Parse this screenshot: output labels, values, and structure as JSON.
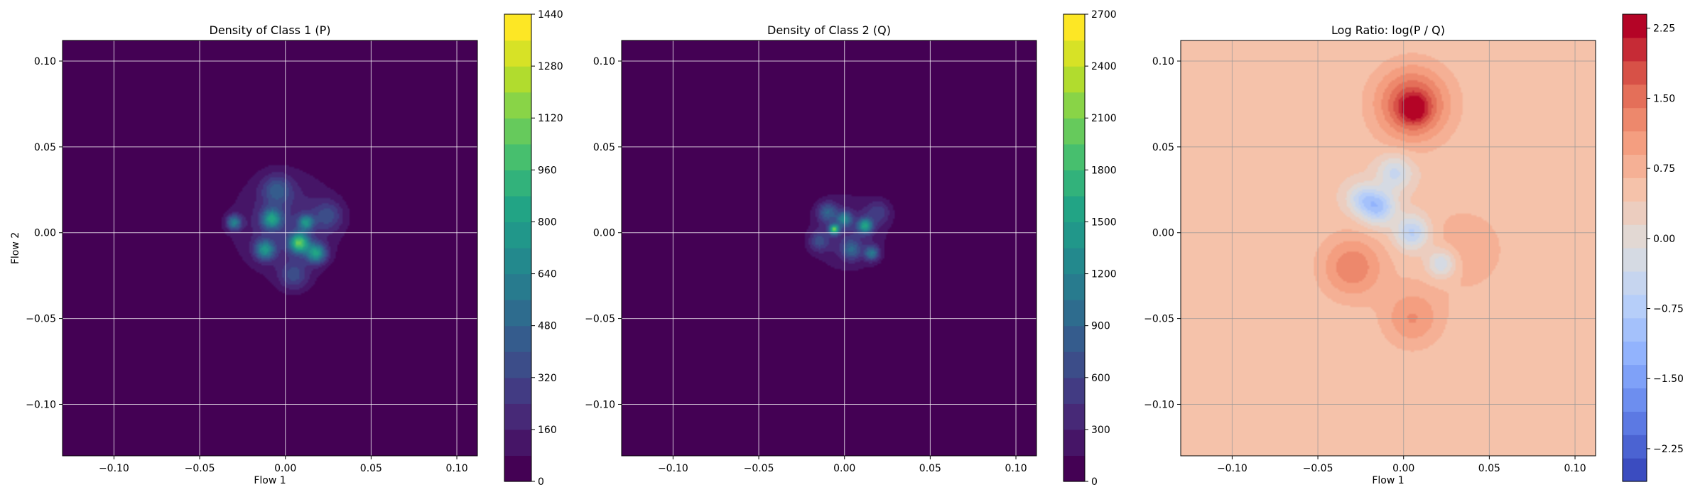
{
  "chart_data": [
    {
      "type": "heatmap",
      "title": "Density of Class 1 (P)",
      "xlabel": "Flow 1",
      "ylabel": "Flow 2",
      "xlim": [
        -0.13,
        0.112
      ],
      "ylim": [
        -0.13,
        0.112
      ],
      "xticks": [
        "−0.10",
        "−0.05",
        "0.00",
        "0.05",
        "0.10"
      ],
      "yticks": [
        "0.10",
        "0.05",
        "0.00",
        "−0.05",
        "−0.10"
      ],
      "grid": true,
      "colormap": "viridis",
      "colorbar": {
        "min": 0,
        "max": 1440,
        "ticks": [
          "0",
          "160",
          "320",
          "480",
          "640",
          "800",
          "960",
          "1120",
          "1280",
          "1440"
        ]
      },
      "blobs": [
        {
          "x": 0.0,
          "y": 0.005,
          "sigma": 0.022,
          "value": 230
        },
        {
          "x": -0.012,
          "y": -0.01,
          "sigma": 0.004,
          "value": 620
        },
        {
          "x": -0.03,
          "y": 0.006,
          "sigma": 0.003,
          "value": 560
        },
        {
          "x": 0.008,
          "y": -0.006,
          "sigma": 0.004,
          "value": 900
        },
        {
          "x": 0.018,
          "y": -0.012,
          "sigma": 0.004,
          "value": 700
        },
        {
          "x": -0.008,
          "y": 0.008,
          "sigma": 0.004,
          "value": 650
        },
        {
          "x": 0.012,
          "y": 0.006,
          "sigma": 0.003,
          "value": 580
        },
        {
          "x": -0.005,
          "y": 0.025,
          "sigma": 0.006,
          "value": 320
        },
        {
          "x": 0.005,
          "y": -0.025,
          "sigma": 0.006,
          "value": 280
        },
        {
          "x": 0.025,
          "y": 0.01,
          "sigma": 0.006,
          "value": 260
        }
      ]
    },
    {
      "type": "heatmap",
      "title": "Density of Class 2 (Q)",
      "xlabel": "",
      "ylabel": "",
      "xlim": [
        -0.13,
        0.112
      ],
      "ylim": [
        -0.13,
        0.112
      ],
      "xticks": [
        "−0.10",
        "−0.05",
        "0.00",
        "0.05",
        "0.10"
      ],
      "yticks": [
        "0.10",
        "0.05",
        "0.00",
        "−0.05",
        "−0.10"
      ],
      "grid": true,
      "colormap": "viridis",
      "colorbar": {
        "min": 0,
        "max": 2700,
        "ticks": [
          "0",
          "300",
          "600",
          "900",
          "1200",
          "1500",
          "1800",
          "2100",
          "2400",
          "2700"
        ]
      },
      "blobs": [
        {
          "x": 0.002,
          "y": 0.0,
          "sigma": 0.016,
          "value": 380
        },
        {
          "x": -0.006,
          "y": 0.002,
          "sigma": 0.002,
          "value": 1700
        },
        {
          "x": 0.012,
          "y": 0.004,
          "sigma": 0.003,
          "value": 1300
        },
        {
          "x": 0.0,
          "y": 0.008,
          "sigma": 0.003,
          "value": 950
        },
        {
          "x": 0.016,
          "y": -0.012,
          "sigma": 0.003,
          "value": 900
        },
        {
          "x": -0.01,
          "y": 0.012,
          "sigma": 0.004,
          "value": 700
        },
        {
          "x": 0.004,
          "y": -0.01,
          "sigma": 0.004,
          "value": 650
        },
        {
          "x": -0.015,
          "y": -0.005,
          "sigma": 0.004,
          "value": 500
        },
        {
          "x": 0.02,
          "y": 0.012,
          "sigma": 0.005,
          "value": 420
        }
      ]
    },
    {
      "type": "heatmap",
      "title": "Log Ratio: log(P / Q)",
      "xlabel": "Flow 1",
      "ylabel": "",
      "xlim": [
        -0.13,
        0.112
      ],
      "ylim": [
        -0.13,
        0.112
      ],
      "xticks": [
        "−0.10",
        "−0.05",
        "0.00",
        "0.05",
        "0.10"
      ],
      "yticks": [
        "0.10",
        "0.05",
        "0.00",
        "−0.05",
        "−0.10"
      ],
      "grid": true,
      "colormap": "coolwarm",
      "colorbar": {
        "min": -2.6,
        "max": 2.4,
        "ticks": [
          "−2.25",
          "−1.50",
          "−0.75",
          "0.00",
          "0.75",
          "1.50",
          "2.25"
        ],
        "tick_values": [
          -2.25,
          -1.5,
          -0.75,
          0,
          0.75,
          1.5,
          2.25
        ]
      },
      "background": 0.45,
      "blobs": [
        {
          "x": 0.005,
          "y": 0.075,
          "sigma": 0.015,
          "value": 1.4
        },
        {
          "x": 0.006,
          "y": 0.072,
          "sigma": 0.006,
          "value": 0.9
        },
        {
          "x": -0.03,
          "y": -0.02,
          "sigma": 0.013,
          "value": 0.9
        },
        {
          "x": 0.005,
          "y": -0.05,
          "sigma": 0.012,
          "value": 0.7
        },
        {
          "x": 0.035,
          "y": -0.01,
          "sigma": 0.02,
          "value": 0.35
        },
        {
          "x": -0.015,
          "y": 0.015,
          "sigma": 0.007,
          "value": -1.4
        },
        {
          "x": 0.005,
          "y": 0.0,
          "sigma": 0.007,
          "value": -1.2
        },
        {
          "x": 0.022,
          "y": -0.018,
          "sigma": 0.006,
          "value": -1.0
        },
        {
          "x": -0.005,
          "y": 0.035,
          "sigma": 0.007,
          "value": -0.9
        },
        {
          "x": -0.025,
          "y": 0.02,
          "sigma": 0.006,
          "value": -0.8
        }
      ]
    }
  ]
}
